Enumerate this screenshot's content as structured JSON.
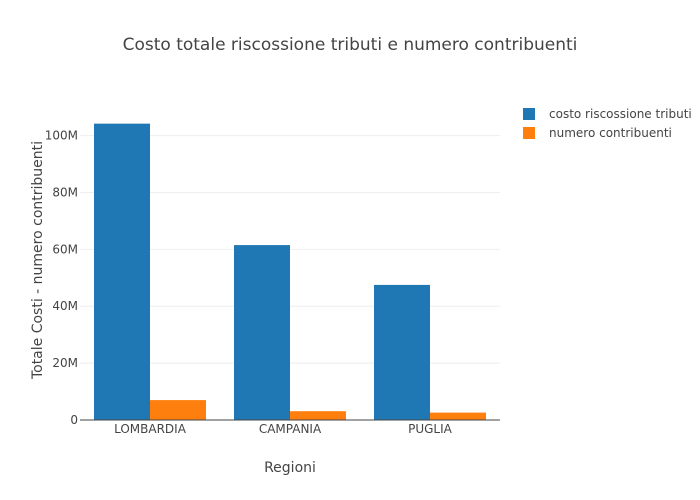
{
  "chart_data": {
    "type": "bar",
    "title": "Costo totale riscossione tributi e numero contribuenti",
    "xlabel": "Regioni",
    "ylabel": "Totale Costi - numero contribuenti",
    "categories": [
      "LOMBARDIA",
      "CAMPANIA",
      "PUGLIA"
    ],
    "series": [
      {
        "name": "costo riscossione tributi",
        "color": "#1f77b4",
        "values": [
          104200000,
          61500000,
          47500000
        ]
      },
      {
        "name": "numero contribuenti",
        "color": "#ff7f0e",
        "values": [
          7000000,
          3100000,
          2600000
        ]
      }
    ],
    "ylim": [
      0,
      109000000
    ],
    "yticks": [
      0,
      20000000,
      40000000,
      60000000,
      80000000,
      100000000
    ],
    "ytick_labels": [
      "0",
      "20M",
      "40M",
      "60M",
      "80M",
      "100M"
    ],
    "grid": true,
    "legend_position": "top-right"
  }
}
